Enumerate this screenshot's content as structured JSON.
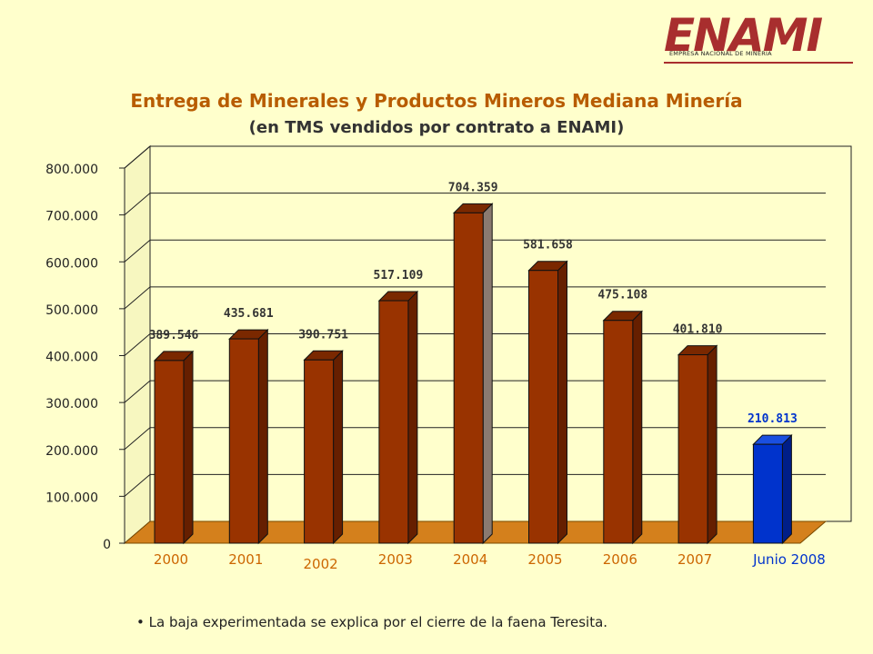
{
  "logo": {
    "word": "ENAMI",
    "tagline": "EMPRESA NACIONAL DE MINERIA"
  },
  "chart_data": {
    "type": "bar",
    "title": "Entrega de Minerales y Productos Mineros Mediana Minería",
    "subtitle": "(en TMS vendidos por contrato a ENAMI)",
    "categories": [
      "2000",
      "2001",
      "2002",
      "2003",
      "2004",
      "2005",
      "2006",
      "2007",
      "Junio 2008"
    ],
    "values": [
      389546,
      435681,
      390751,
      517109,
      704359,
      581658,
      475108,
      401810,
      210813
    ],
    "value_labels": [
      "389.546",
      "435.681",
      "390.751",
      "517.109",
      "704.359",
      "581.658",
      "475.108",
      "401.810",
      "210.813"
    ],
    "yticks": [
      0,
      100000,
      200000,
      300000,
      400000,
      500000,
      600000,
      700000,
      800000
    ],
    "ytick_labels": [
      "0",
      "100.000",
      "200.000",
      "300.000",
      "400.000",
      "500.000",
      "600.000",
      "700.000",
      "800.000"
    ],
    "ylim": [
      0,
      800000
    ],
    "grid": true,
    "xlabel": "",
    "ylabel": "",
    "colors": {
      "bar": "#993300",
      "bar_side": "#661F00",
      "bar_top": "#7A2800",
      "highlight_bar": "#0033CC",
      "highlight_side": "#001E88",
      "highlight_top": "#1A4FE0",
      "floor": "#D4801C",
      "category_label": "#CC6600",
      "highlight_label": "#0033CC",
      "value_label": "#333333"
    }
  },
  "note": "La baja experimentada se explica por el cierre de la faena Teresita."
}
